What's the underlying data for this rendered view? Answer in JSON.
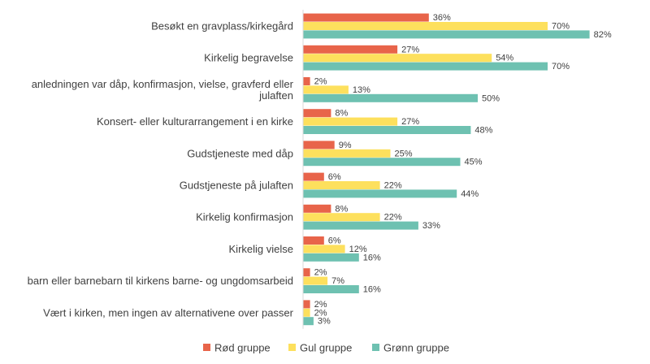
{
  "chart_data": {
    "type": "bar",
    "orientation": "horizontal",
    "categories": [
      "Besøkt en gravplass/kirkegård",
      "Kirkelig begravelse",
      "I anledningen var dåp, konfirmasjon, vielse, gravferd eller julaften",
      "Konsert- eller kulturarrangement i en kirke",
      "Gudstjeneste med dåp",
      "Gudstjeneste på julaften",
      "Kirkelig konfirmasjon",
      "Kirkelig vielse",
      "Fulgt barn eller barnebarn til kirkens barne- og ungdomsarbeid",
      "Vært i kirken, men ingen av alternativene over passer"
    ],
    "category_lines": [
      [
        "Besøkt en gravplass/kirkegård"
      ],
      [
        "Kirkelig begravelse"
      ],
      [
        "anledningen var dåp, konfirmasjon, vielse, gravferd eller",
        "julaften"
      ],
      [
        "Konsert- eller kulturarrangement i en kirke"
      ],
      [
        "Gudstjeneste med dåp"
      ],
      [
        "Gudstjeneste på julaften"
      ],
      [
        "Kirkelig konfirmasjon"
      ],
      [
        "Kirkelig vielse"
      ],
      [
        "barn eller barnebarn til kirkens barne- og ungdomsarbeid"
      ],
      [
        "Vært i kirken, men ingen av alternativene over passer"
      ]
    ],
    "series": [
      {
        "name": "Rød gruppe",
        "color": "#e8644a",
        "values": [
          36,
          27,
          2,
          8,
          9,
          6,
          8,
          6,
          2,
          2
        ]
      },
      {
        "name": "Gul gruppe",
        "color": "#fde05d",
        "values": [
          70,
          54,
          13,
          27,
          25,
          22,
          22,
          12,
          7,
          2
        ]
      },
      {
        "name": "Grønn gruppe",
        "color": "#6ec1b1",
        "values": [
          82,
          70,
          50,
          48,
          45,
          44,
          33,
          16,
          16,
          3
        ]
      }
    ],
    "value_suffix": "%",
    "xlim": [
      0,
      100
    ],
    "grid": false,
    "legend": "bottom-center",
    "title": "",
    "xlabel": "",
    "ylabel": ""
  }
}
